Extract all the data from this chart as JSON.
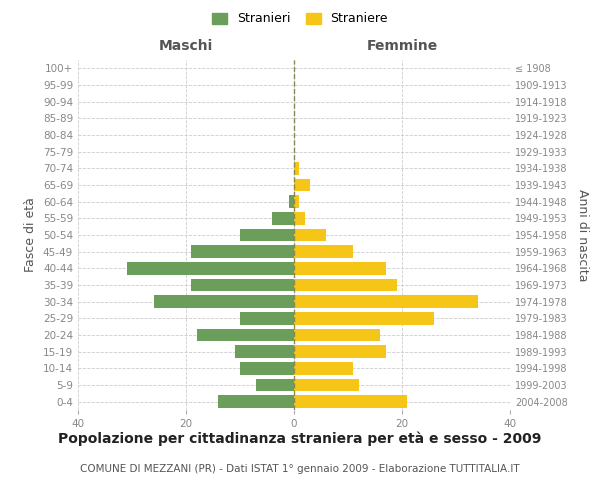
{
  "age_groups": [
    "0-4",
    "5-9",
    "10-14",
    "15-19",
    "20-24",
    "25-29",
    "30-34",
    "35-39",
    "40-44",
    "45-49",
    "50-54",
    "55-59",
    "60-64",
    "65-69",
    "70-74",
    "75-79",
    "80-84",
    "85-89",
    "90-94",
    "95-99",
    "100+"
  ],
  "birth_years": [
    "2004-2008",
    "1999-2003",
    "1994-1998",
    "1989-1993",
    "1984-1988",
    "1979-1983",
    "1974-1978",
    "1969-1973",
    "1964-1968",
    "1959-1963",
    "1954-1958",
    "1949-1953",
    "1944-1948",
    "1939-1943",
    "1934-1938",
    "1929-1933",
    "1924-1928",
    "1919-1923",
    "1914-1918",
    "1909-1913",
    "≤ 1908"
  ],
  "maschi": [
    14,
    7,
    10,
    11,
    18,
    10,
    26,
    19,
    31,
    19,
    10,
    4,
    1,
    0,
    0,
    0,
    0,
    0,
    0,
    0,
    0
  ],
  "femmine": [
    21,
    12,
    11,
    17,
    16,
    26,
    34,
    19,
    17,
    11,
    6,
    2,
    1,
    3,
    1,
    0,
    0,
    0,
    0,
    0,
    0
  ],
  "maschi_color": "#6a9e5a",
  "femmine_color": "#f5c518",
  "background_color": "#ffffff",
  "grid_color": "#cccccc",
  "title": "Popolazione per cittadinanza straniera per età e sesso - 2009",
  "subtitle": "COMUNE DI MEZZANI (PR) - Dati ISTAT 1° gennaio 2009 - Elaborazione TUTTITALIA.IT",
  "xlabel_left": "Maschi",
  "xlabel_right": "Femmine",
  "ylabel_left": "Fasce di età",
  "ylabel_right": "Anni di nascita",
  "legend_stranieri": "Stranieri",
  "legend_straniere": "Straniere",
  "xlim": 40,
  "title_fontsize": 10,
  "subtitle_fontsize": 7.5,
  "tick_fontsize": 7.5,
  "label_fontsize": 9
}
